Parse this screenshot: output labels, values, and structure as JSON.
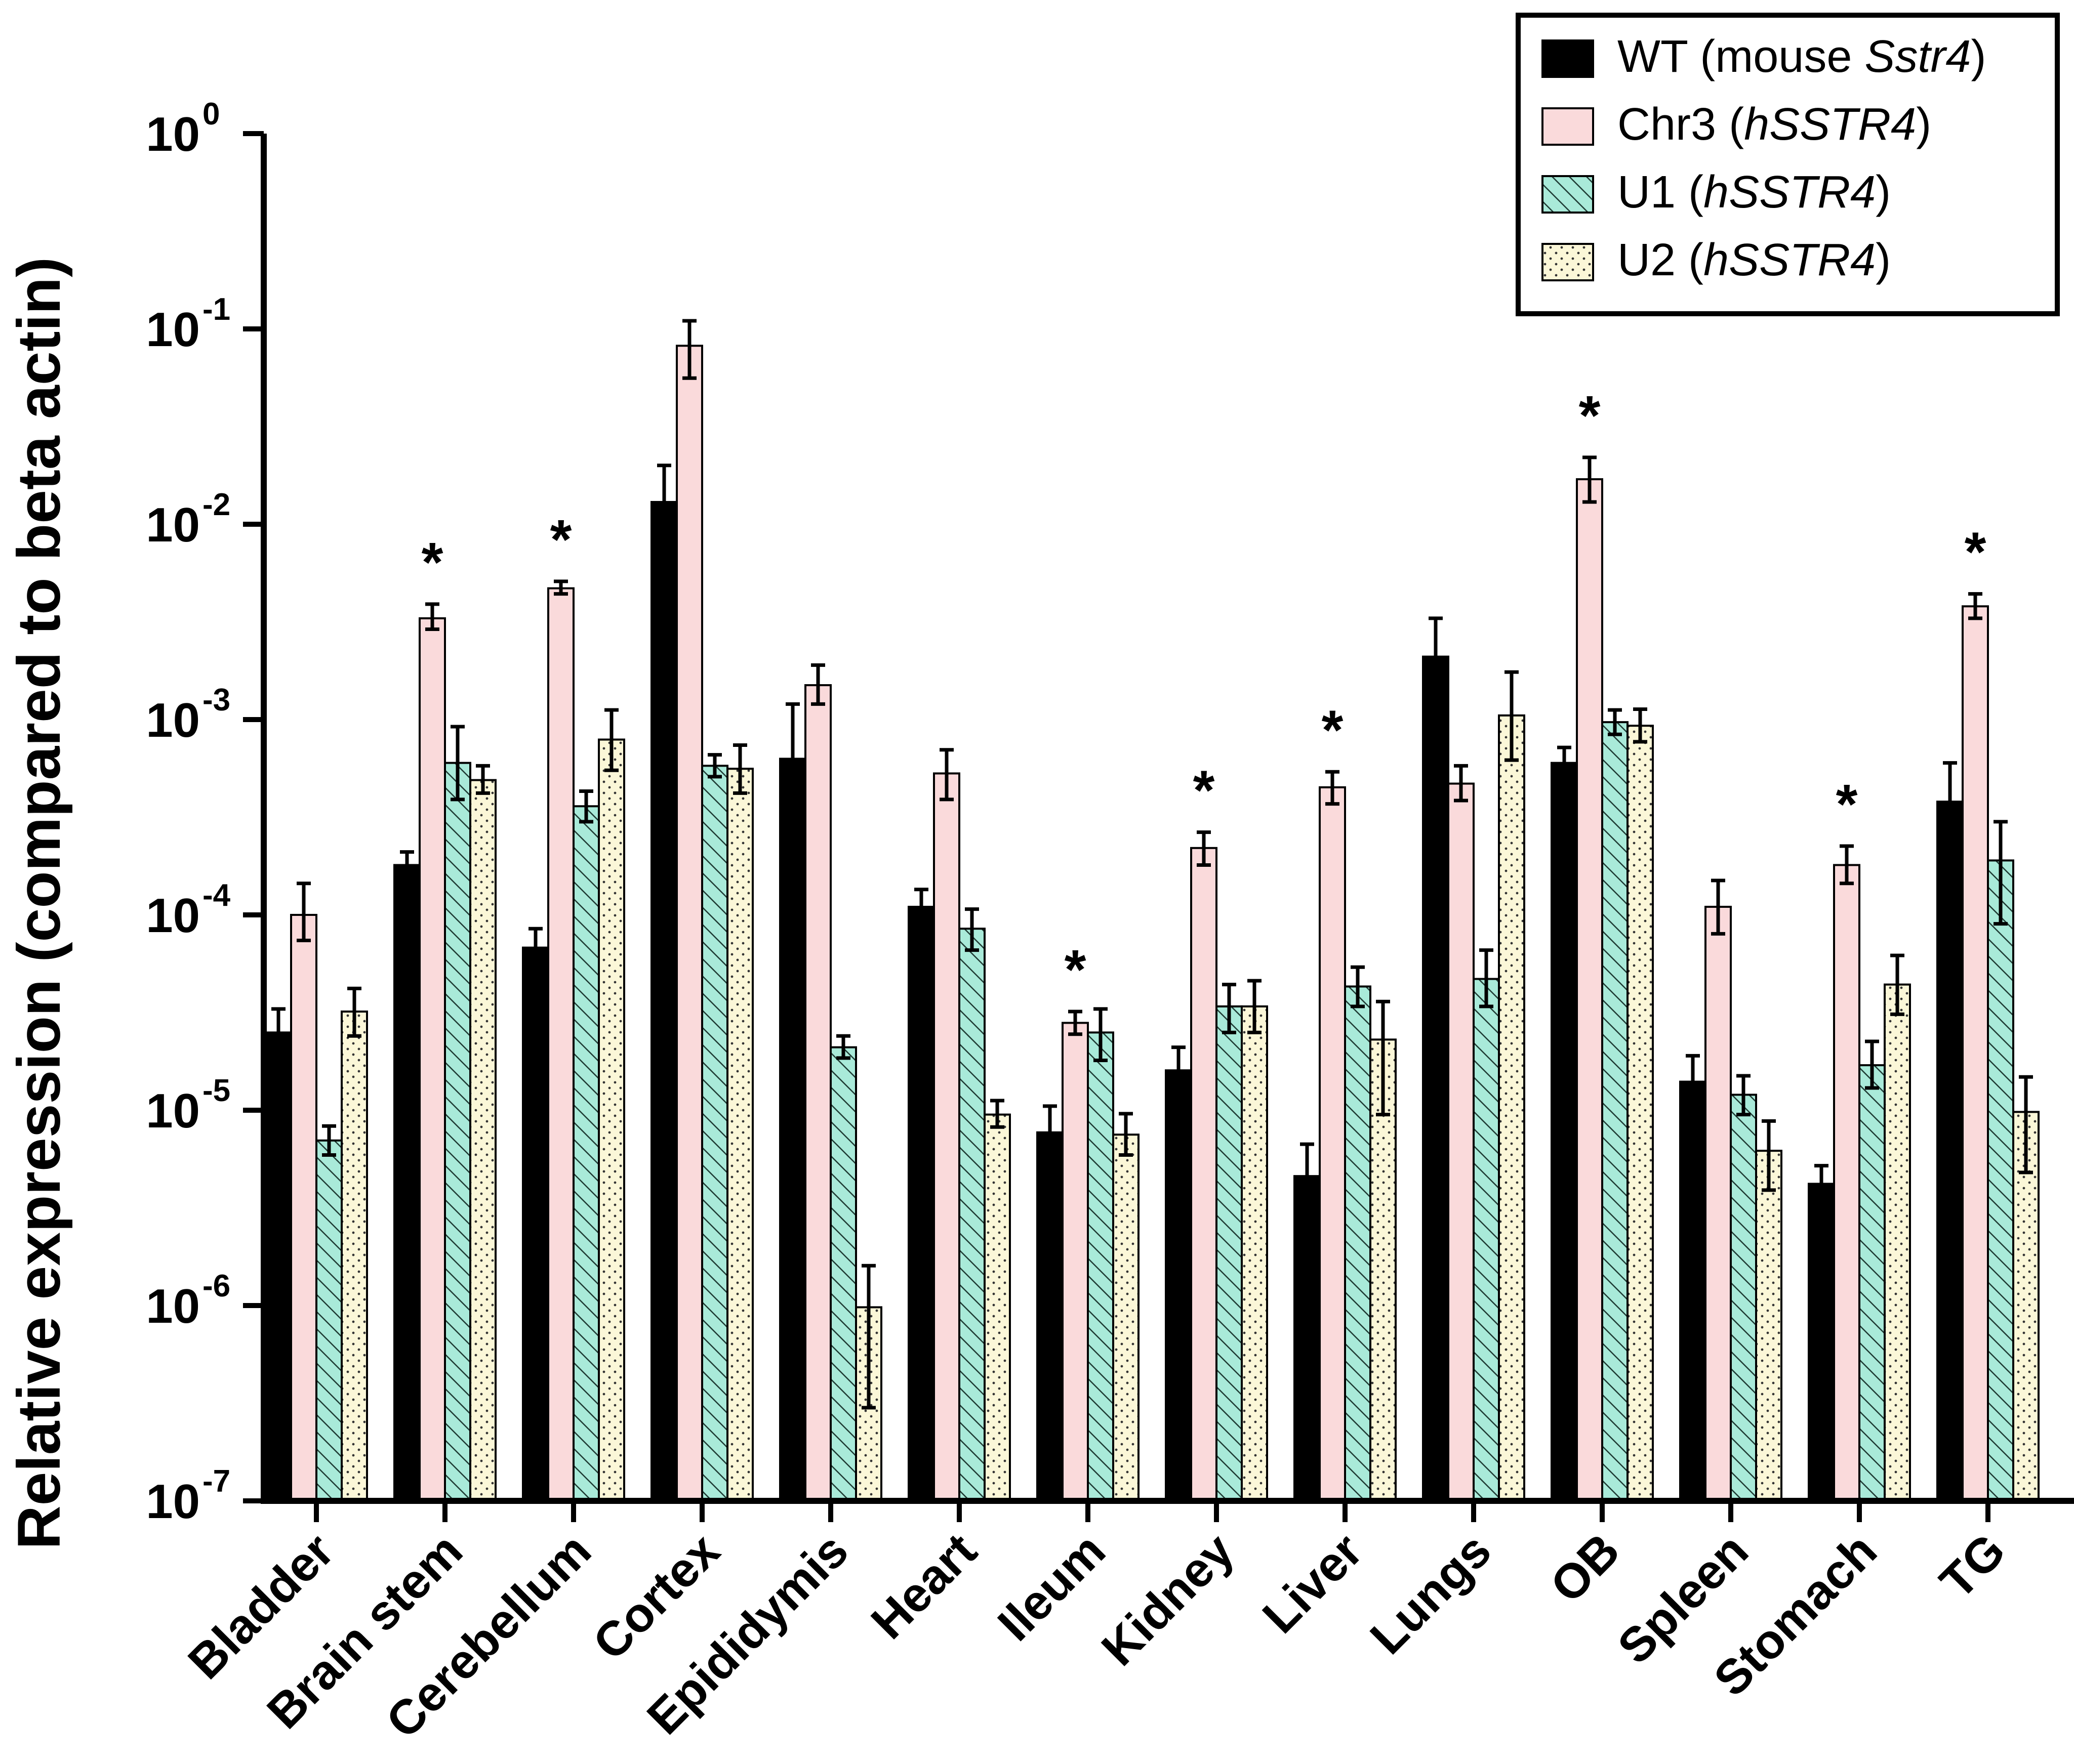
{
  "chart_data": {
    "type": "bar",
    "title": "",
    "xlabel": "",
    "ylabel": "Relative expression (compared to beta actin)",
    "y_scale": "log10",
    "ylim": [
      1e-07,
      1
    ],
    "y_ticks": [
      {
        "value": 1e-07,
        "base": "10",
        "exp": "-7"
      },
      {
        "value": 1e-06,
        "base": "10",
        "exp": "-6"
      },
      {
        "value": 1e-05,
        "base": "10",
        "exp": "-5"
      },
      {
        "value": 0.0001,
        "base": "10",
        "exp": "-4"
      },
      {
        "value": 0.001,
        "base": "10",
        "exp": "-3"
      },
      {
        "value": 0.01,
        "base": "10",
        "exp": "-2"
      },
      {
        "value": 0.1,
        "base": "10",
        "exp": "-1"
      },
      {
        "value": 1,
        "base": "10",
        "exp": "0"
      }
    ],
    "categories": [
      "Bladder",
      "Brain stem",
      "Cerebellum",
      "Cortex",
      "Epididymis",
      "Heart",
      "Ileum",
      "Kidney",
      "Liver",
      "Lungs",
      "OB",
      "Spleen",
      "Stomach",
      "TG"
    ],
    "series": [
      {
        "name": "WT (mouse Sstr4)",
        "name_parts": [
          {
            "text": "WT (mouse ",
            "italic": false
          },
          {
            "text": "Sstr4",
            "italic": true
          },
          {
            "text": ")",
            "italic": false
          }
        ],
        "fill": "#000000",
        "pattern": "solid",
        "values": [
          2.5e-05,
          0.00018,
          6.8e-05,
          0.013,
          0.00063,
          0.00011,
          7.7e-06,
          1.6e-05,
          4.6e-06,
          0.0021,
          0.0006,
          1.4e-05,
          4.2e-06,
          0.00038
        ],
        "err_upper": [
          3.3e-05,
          0.00021,
          8.5e-05,
          0.02,
          0.0012,
          0.000135,
          1.05e-05,
          2.1e-05,
          6.7e-06,
          0.0033,
          0.00072,
          1.9e-05,
          5.2e-06,
          0.0006
        ],
        "err_lower": [
          null,
          null,
          null,
          null,
          null,
          null,
          null,
          null,
          null,
          null,
          null,
          null,
          null,
          null
        ]
      },
      {
        "name": "Chr3 (hSSTR4)",
        "name_parts": [
          {
            "text": "Chr3 (",
            "italic": false
          },
          {
            "text": "hSSTR4",
            "italic": true
          },
          {
            "text": ")",
            "italic": false
          }
        ],
        "fill": "#fadadb",
        "pattern": "solid",
        "values": [
          0.0001,
          0.0033,
          0.0047,
          0.082,
          0.0015,
          0.00053,
          2.8e-05,
          0.00022,
          0.00045,
          0.00047,
          0.017,
          0.00011,
          0.00018,
          0.0038
        ],
        "err_upper": [
          0.000145,
          0.0039,
          0.0051,
          0.11,
          0.0019,
          0.0007,
          3.2e-05,
          0.000265,
          0.00054,
          0.00058,
          0.022,
          0.00015,
          0.000225,
          0.0044
        ],
        "err_lower": [
          7.4e-05,
          0.0029,
          0.0044,
          0.056,
          0.0012,
          0.00039,
          2.45e-05,
          0.00018,
          0.00037,
          0.000385,
          0.013,
          8e-05,
          0.000145,
          0.0033
        ]
      },
      {
        "name": "U1 (hSSTR4)",
        "name_parts": [
          {
            "text": "U1 (",
            "italic": false
          },
          {
            "text": "hSSTR4",
            "italic": true
          },
          {
            "text": ")",
            "italic": false
          }
        ],
        "fill": "#a9ead9",
        "pattern": "hatch",
        "values": [
          7e-06,
          0.0006,
          0.00036,
          0.00058,
          2.1e-05,
          8.5e-05,
          2.5e-05,
          3.4e-05,
          4.3e-05,
          4.7e-05,
          0.00097,
          1.2e-05,
          1.7e-05,
          0.00019
        ],
        "err_upper": [
          8.3e-06,
          0.00092,
          0.00043,
          0.00066,
          2.4e-05,
          0.000107,
          3.3e-05,
          4.4e-05,
          5.4e-05,
          6.6e-05,
          0.00112,
          1.5e-05,
          2.25e-05,
          0.0003
        ],
        "err_lower": [
          5.9e-06,
          0.00039,
          0.0003,
          0.00051,
          1.85e-05,
          6.6e-05,
          1.8e-05,
          2.5e-05,
          3.4e-05,
          3.4e-05,
          0.00084,
          9.5e-06,
          1.3e-05,
          9e-05
        ]
      },
      {
        "name": "U2 (hSSTR4)",
        "name_parts": [
          {
            "text": "U2 (",
            "italic": false
          },
          {
            "text": "hSSTR4",
            "italic": true
          },
          {
            "text": ")",
            "italic": false
          }
        ],
        "fill": "#fbf7d8",
        "pattern": "dots",
        "values": [
          3.2e-05,
          0.00049,
          0.00079,
          0.00056,
          9.8e-07,
          9.5e-06,
          7.5e-06,
          3.4e-05,
          2.3e-05,
          0.00105,
          0.00093,
          6.2e-06,
          4.4e-05,
          9.8e-06
        ],
        "err_upper": [
          4.2e-05,
          0.00058,
          0.00112,
          0.00074,
          1.6e-06,
          1.12e-05,
          9.6e-06,
          4.6e-05,
          3.6e-05,
          0.00175,
          0.00113,
          8.8e-06,
          6.2e-05,
          1.48e-05
        ],
        "err_lower": [
          2.4e-05,
          0.00042,
          0.00055,
          0.00042,
          3e-07,
          8.2e-06,
          5.9e-06,
          2.5e-05,
          9.5e-06,
          0.00062,
          0.00077,
          3.9e-06,
          3.1e-05,
          4.8e-06
        ]
      }
    ],
    "annotations": [
      {
        "category": "Brain stem",
        "text": "*"
      },
      {
        "category": "Cerebellum",
        "text": "*"
      },
      {
        "category": "Ileum",
        "text": "*"
      },
      {
        "category": "Kidney",
        "text": "*"
      },
      {
        "category": "Liver",
        "text": "*"
      },
      {
        "category": "OB",
        "text": "*"
      },
      {
        "category": "Stomach",
        "text": "*"
      },
      {
        "category": "TG",
        "text": "*"
      }
    ],
    "legend_position": "top-right",
    "grid": false
  }
}
